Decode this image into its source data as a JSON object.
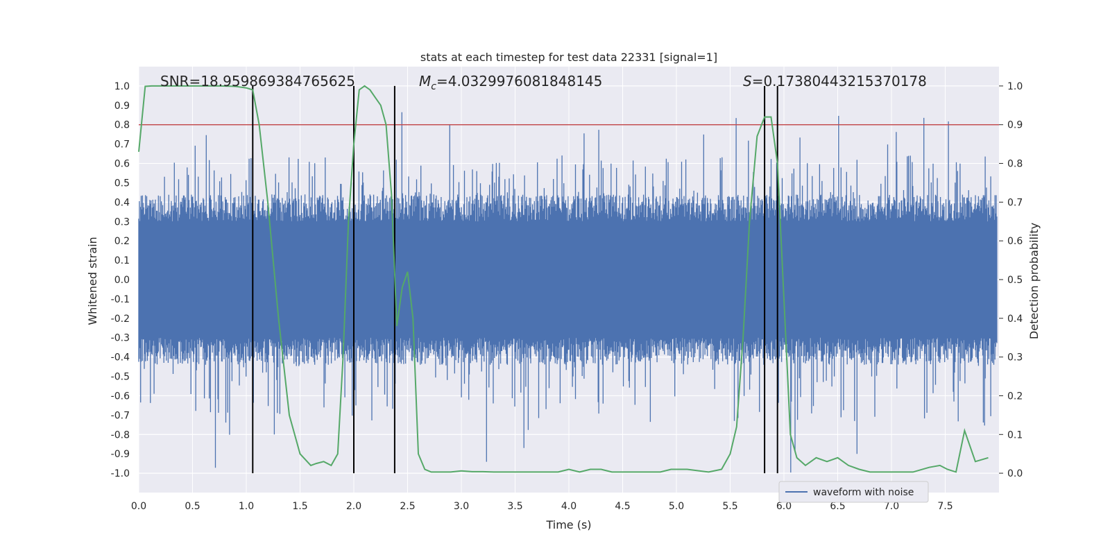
{
  "chart_data": {
    "type": "line",
    "title": "stats at each timestep for test data 22331 [signal=1]",
    "xlabel": "Time (s)",
    "ylabel_left": "Whitened strain",
    "ylabel_right": "Detection probability",
    "xlim": [
      0.0,
      8.0
    ],
    "ylim_left": [
      -1.1,
      1.1
    ],
    "ylim_right": [
      -0.05,
      1.05
    ],
    "x_ticks": [
      "0.0",
      "0.5",
      "1.0",
      "1.5",
      "2.0",
      "2.5",
      "3.0",
      "3.5",
      "4.0",
      "4.5",
      "5.0",
      "5.5",
      "6.0",
      "6.5",
      "7.0",
      "7.5"
    ],
    "y_ticks_left": [
      "-1.0",
      "-0.9",
      "-0.8",
      "-0.7",
      "-0.6",
      "-0.5",
      "-0.4",
      "-0.3",
      "-0.2",
      "-0.1",
      "0.0",
      "0.1",
      "0.2",
      "0.3",
      "0.4",
      "0.5",
      "0.6",
      "0.7",
      "0.8",
      "0.9",
      "1.0"
    ],
    "y_ticks_right": [
      "0.0",
      "0.1",
      "0.2",
      "0.3",
      "0.4",
      "0.5",
      "0.6",
      "0.7",
      "0.8",
      "0.9",
      "1.0"
    ],
    "annotations": {
      "snr": "SNR=18.959869384765625",
      "mc_symbol": "M",
      "mc_sub": "c",
      "mc_value": "=4.0329976081848145",
      "s_symbol": "S",
      "s_value": "=0.17380443215370178"
    },
    "threshold": {
      "value": 0.9,
      "axis": "right",
      "color": "#c44e52"
    },
    "vertical_lines": [
      1.06,
      2.0,
      2.38,
      5.82,
      5.94
    ],
    "legend": {
      "label": "waveform with noise",
      "placement": "lower-right"
    },
    "series": [
      {
        "name": "waveform with noise",
        "axis": "left",
        "color": "#4c72b0",
        "kind": "noise",
        "description_values": {
          "typical_envelope": 0.4,
          "min": -1.0,
          "max": 0.9
        }
      },
      {
        "name": "detection probability",
        "axis": "right",
        "color": "#55a868",
        "x": [
          0.0,
          0.06,
          0.12,
          0.25,
          0.5,
          0.75,
          0.9,
          1.0,
          1.06,
          1.12,
          1.2,
          1.3,
          1.4,
          1.5,
          1.6,
          1.65,
          1.72,
          1.79,
          1.85,
          1.9,
          1.95,
          2.0,
          2.05,
          2.1,
          2.15,
          2.2,
          2.25,
          2.3,
          2.35,
          2.4,
          2.45,
          2.5,
          2.55,
          2.6,
          2.66,
          2.72,
          2.76,
          2.82,
          2.9,
          3.0,
          3.1,
          3.2,
          3.3,
          3.5,
          3.7,
          3.9,
          4.0,
          4.1,
          4.2,
          4.3,
          4.4,
          4.5,
          4.7,
          4.85,
          4.95,
          5.1,
          5.3,
          5.42,
          5.5,
          5.56,
          5.62,
          5.68,
          5.75,
          5.82,
          5.88,
          5.94,
          6.0,
          6.06,
          6.12,
          6.2,
          6.3,
          6.4,
          6.5,
          6.6,
          6.7,
          6.8,
          6.9,
          7.0,
          7.2,
          7.35,
          7.45,
          7.52,
          7.6,
          7.68,
          7.78,
          7.9
        ],
        "y": [
          0.83,
          0.999,
          1.0,
          1.0,
          1.0,
          1.0,
          0.999,
          0.995,
          0.99,
          0.9,
          0.7,
          0.4,
          0.15,
          0.05,
          0.02,
          0.025,
          0.03,
          0.02,
          0.05,
          0.3,
          0.65,
          0.85,
          0.99,
          1.0,
          0.99,
          0.97,
          0.95,
          0.9,
          0.72,
          0.38,
          0.48,
          0.52,
          0.4,
          0.05,
          0.01,
          0.003,
          0.003,
          0.003,
          0.003,
          0.006,
          0.004,
          0.004,
          0.003,
          0.003,
          0.003,
          0.003,
          0.01,
          0.003,
          0.01,
          0.01,
          0.003,
          0.003,
          0.003,
          0.003,
          0.01,
          0.01,
          0.003,
          0.01,
          0.05,
          0.12,
          0.35,
          0.65,
          0.87,
          0.92,
          0.92,
          0.8,
          0.45,
          0.1,
          0.04,
          0.02,
          0.04,
          0.03,
          0.04,
          0.02,
          0.01,
          0.003,
          0.003,
          0.003,
          0.003,
          0.015,
          0.02,
          0.01,
          0.003,
          0.11,
          0.03,
          0.04
        ]
      }
    ]
  }
}
